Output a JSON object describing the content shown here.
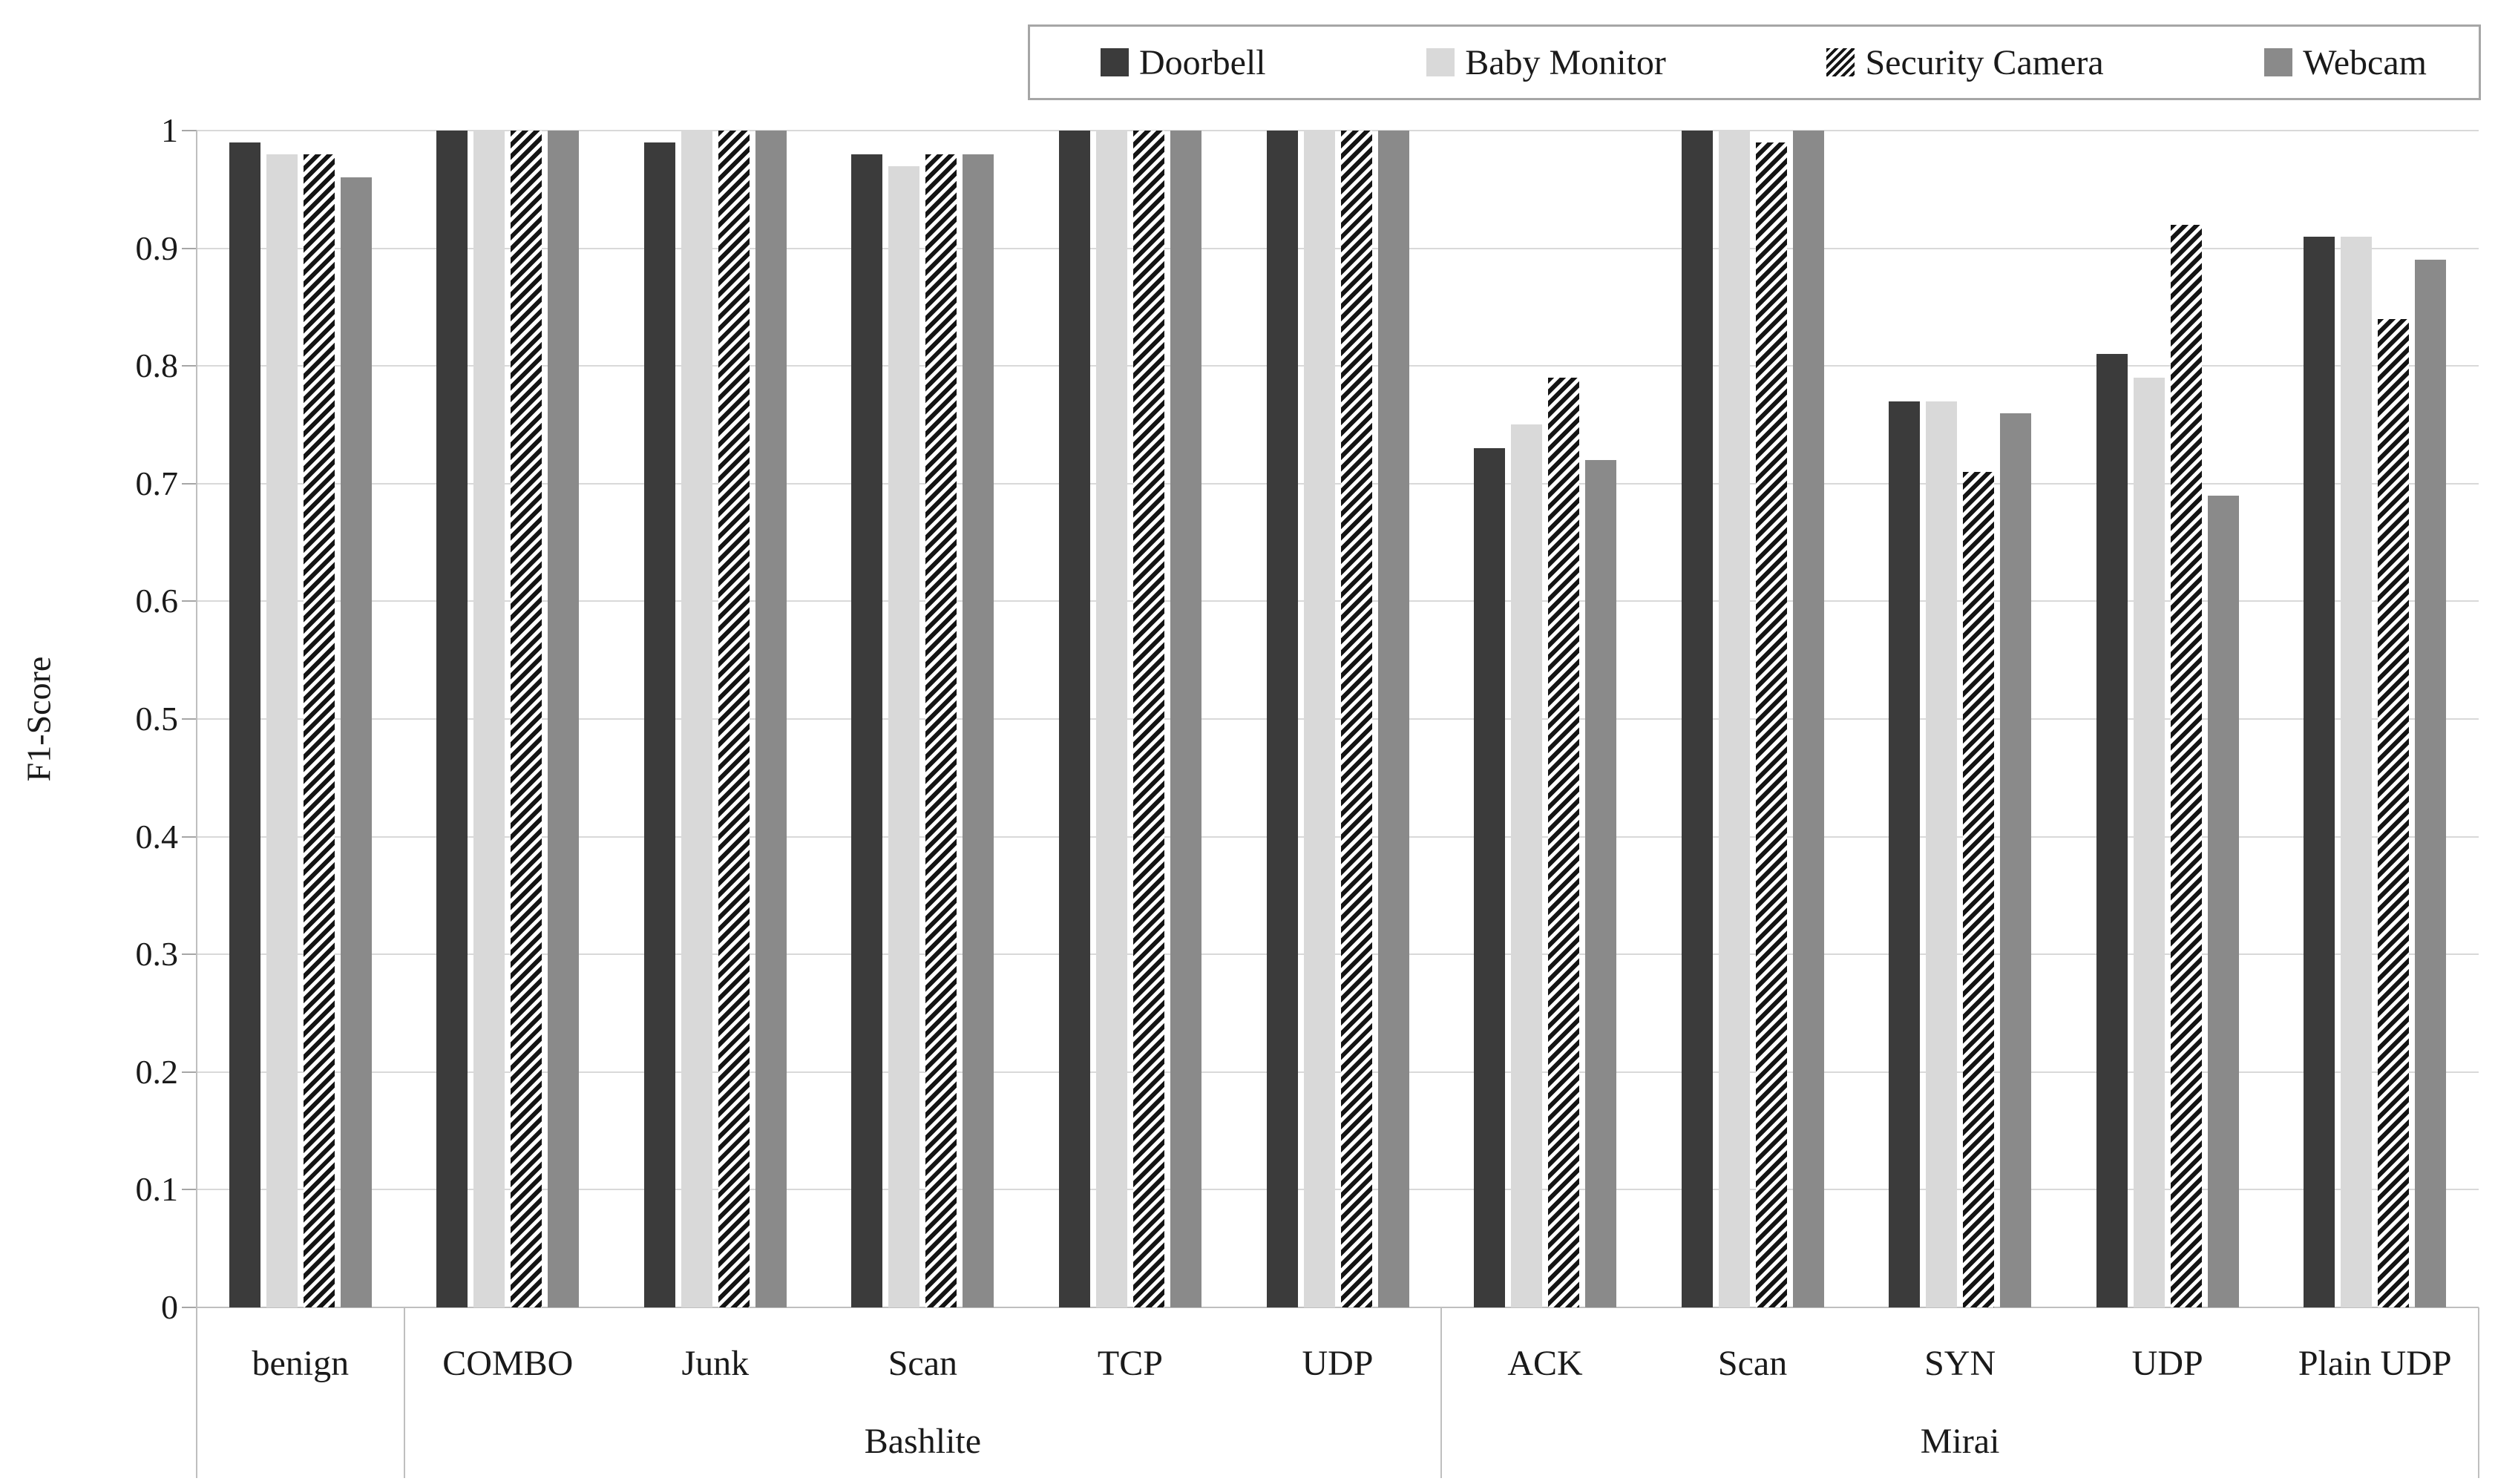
{
  "chart_data": {
    "type": "bar",
    "title": "",
    "ylabel": "F1-Score",
    "xlabel": "",
    "ylim": [
      0,
      1
    ],
    "ytick_step": 0.1,
    "ytick_labels": [
      "0",
      "0.1",
      "0.2",
      "0.3",
      "0.4",
      "0.5",
      "0.6",
      "0.7",
      "0.8",
      "0.9",
      "1"
    ],
    "grid": true,
    "legend_position": "top-right",
    "categories": [
      "benign",
      "COMBO",
      "Junk",
      "Scan",
      "TCP",
      "UDP",
      "ACK",
      "Scan",
      "SYN",
      "UDP",
      "Plain UDP"
    ],
    "series": [
      {
        "name": "Doorbell",
        "style": "solid",
        "color": "#3b3b3b",
        "values": [
          0.99,
          1.0,
          0.99,
          0.98,
          1.0,
          1.0,
          0.73,
          1.0,
          0.77,
          0.81,
          0.91
        ]
      },
      {
        "name": "Baby Monitor",
        "style": "solid",
        "color": "#d9d9d9",
        "values": [
          0.98,
          1.0,
          1.0,
          0.97,
          1.0,
          1.0,
          0.75,
          1.0,
          0.77,
          0.79,
          0.91
        ]
      },
      {
        "name": "Security Camera",
        "style": "hatch",
        "color": "#141414",
        "values": [
          0.98,
          1.0,
          1.0,
          0.98,
          1.0,
          1.0,
          0.79,
          0.99,
          0.71,
          0.92,
          0.84
        ]
      },
      {
        "name": "Webcam",
        "style": "solid",
        "color": "#8a8a8a",
        "values": [
          0.96,
          1.0,
          1.0,
          0.98,
          1.0,
          1.0,
          0.72,
          1.0,
          0.76,
          0.69,
          0.89
        ]
      }
    ],
    "group_labels": [
      {
        "label": "Bashlite",
        "from": 1,
        "to": 5
      },
      {
        "label": "Mirai",
        "from": 6,
        "to": 10
      }
    ]
  },
  "colors": {
    "gridline": "#d9d9d9",
    "axis": "#bfbfbf",
    "tick": "#a6a6a6",
    "text": "#1a1a1a",
    "legend_border": "#a6a6a6",
    "background": "#ffffff",
    "hatch_background": "#ffffff"
  }
}
